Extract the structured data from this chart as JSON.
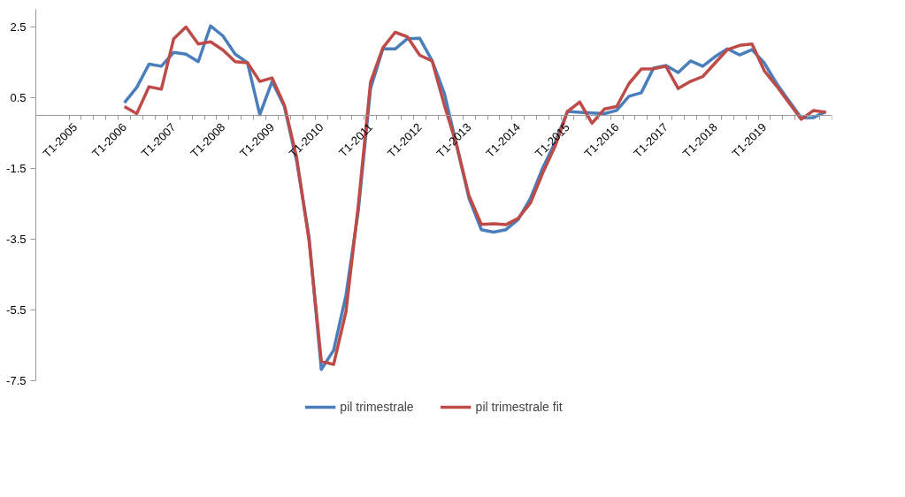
{
  "chart_data": {
    "type": "line",
    "categories": [
      "T1-2005",
      null,
      null,
      null,
      "T1-2006",
      null,
      null,
      null,
      "T1-2007",
      null,
      null,
      null,
      "T1-2008",
      null,
      null,
      null,
      "T1-2009",
      null,
      null,
      null,
      "T1-2010",
      null,
      null,
      null,
      "T1-2011",
      null,
      null,
      null,
      "T1-2012",
      null,
      null,
      null,
      "T1-2013",
      null,
      null,
      null,
      "T1-2014",
      null,
      null,
      null,
      "T1-2015",
      null,
      null,
      null,
      "T1-2016",
      null,
      null,
      null,
      "T1-2017",
      null,
      null,
      null,
      "T1-2018",
      null,
      null,
      null,
      "T1-2019",
      null,
      null,
      null,
      null,
      null
    ],
    "series": [
      {
        "name": "pil trimestrale",
        "color": "#4a7ebb",
        "values": [
          null,
          null,
          null,
          null,
          0.36,
          0.79,
          1.45,
          1.39,
          1.78,
          1.73,
          1.52,
          2.53,
          2.25,
          1.73,
          1.49,
          0.02,
          0.96,
          0.25,
          -1.3,
          -3.43,
          -7.18,
          -6.64,
          -5.09,
          -2.71,
          0.76,
          1.88,
          1.88,
          2.17,
          2.18,
          1.55,
          0.62,
          -0.85,
          -2.34,
          -3.23,
          -3.3,
          -3.23,
          -2.94,
          -2.34,
          -1.48,
          -0.76,
          0.11,
          0.09,
          0.07,
          0.05,
          0.14,
          0.54,
          0.64,
          1.34,
          1.41,
          1.21,
          1.54,
          1.39,
          1.66,
          1.88,
          1.71,
          1.86,
          1.48,
          0.9,
          0.41,
          -0.07,
          -0.06,
          0.11
        ]
      },
      {
        "name": "pil trimestrale fit",
        "color": "#be4b48",
        "values": [
          null,
          null,
          null,
          null,
          0.25,
          0.05,
          0.81,
          0.74,
          2.16,
          2.5,
          2.02,
          2.08,
          1.85,
          1.52,
          1.49,
          0.96,
          1.06,
          0.29,
          -1.2,
          -3.53,
          -6.95,
          -7.04,
          -5.55,
          -2.56,
          0.94,
          1.91,
          2.35,
          2.22,
          1.7,
          1.54,
          0.29,
          -0.85,
          -2.27,
          -3.08,
          -3.06,
          -3.09,
          -2.91,
          -2.47,
          -1.62,
          -0.87,
          0.11,
          0.38,
          -0.22,
          0.18,
          0.25,
          0.9,
          1.31,
          1.32,
          1.39,
          0.76,
          0.96,
          1.1,
          1.48,
          1.86,
          1.98,
          2.02,
          1.26,
          0.83,
          0.36,
          -0.11,
          0.14,
          0.09
        ]
      }
    ],
    "ylim": [
      -7.5,
      3.0
    ],
    "yticks": [
      -7.5,
      -5.5,
      -3.5,
      -1.5,
      0.5,
      2.5
    ],
    "grid": false,
    "legend": "bottom",
    "marker": "none",
    "line_style": "solid"
  }
}
